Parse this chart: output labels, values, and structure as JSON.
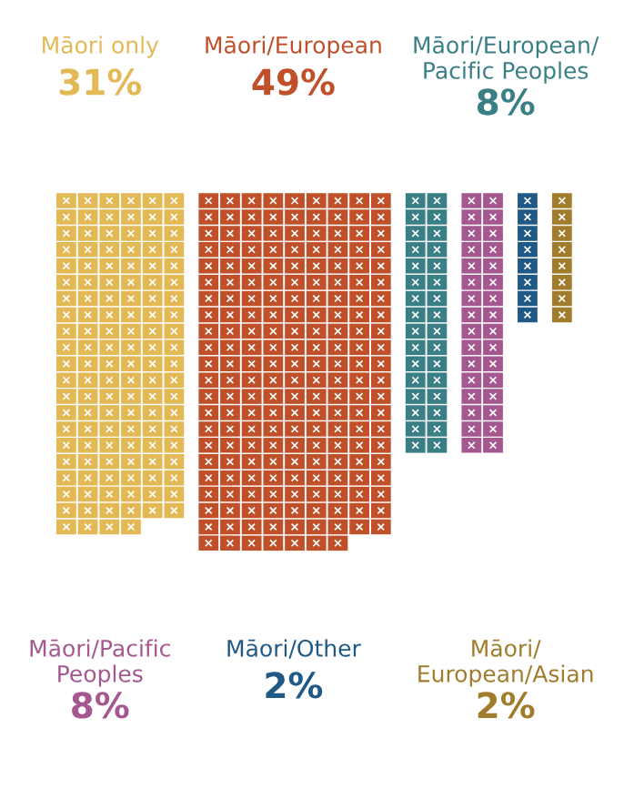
{
  "chart_data": {
    "type": "other",
    "categories": [
      "Māori only",
      "Māori/European",
      "Māori/European/\nPacific Peoples",
      "Māori/Pacific\nPeoples",
      "Māori/Other",
      "Māori/\nEuropean/Asian"
    ],
    "values": [
      31,
      49,
      8,
      8,
      2,
      2
    ],
    "value_labels": [
      "31%",
      "49%",
      "8%",
      "8%",
      "2%",
      "2%"
    ],
    "colors": [
      "#e3b956",
      "#c0502a",
      "#3a7f86",
      "#a5578f",
      "#1f5a87",
      "#a07c2c"
    ]
  }
}
